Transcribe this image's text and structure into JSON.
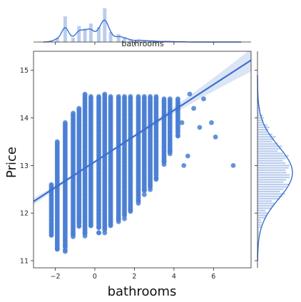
{
  "chart_data": {
    "type": "scatter",
    "subtype": "jointplot-regression",
    "xlabel": "bathrooms",
    "ylabel": "Price",
    "top_marginal_label": "bathrooms",
    "xlim": [
      -3.1,
      7.9
    ],
    "ylim": [
      10.85,
      15.4
    ],
    "xticks": [
      -2,
      0,
      2,
      4,
      6
    ],
    "yticks": [
      11,
      12,
      13,
      14,
      15
    ],
    "grid": false,
    "colors": {
      "points": "#4a7fd4",
      "line": "#3b6fcf",
      "hist": "#aec4ea",
      "axis": "#262626"
    },
    "regression": {
      "slope": 0.27,
      "intercept": 13.08,
      "x_range": [
        -3.1,
        7.9
      ]
    },
    "columns": [
      {
        "x": -2.2,
        "ymin": 11.6,
        "ymax": 12.6
      },
      {
        "x": -1.9,
        "ymin": 11.3,
        "ymax": 13.5
      },
      {
        "x": -1.5,
        "ymin": 11.3,
        "ymax": 13.9
      },
      {
        "x": -1.1,
        "ymin": 11.6,
        "ymax": 14.1
      },
      {
        "x": -0.8,
        "ymin": 11.8,
        "ymax": 14.2
      },
      {
        "x": -0.5,
        "ymin": 11.6,
        "ymax": 14.5
      },
      {
        "x": -0.2,
        "ymin": 11.8,
        "ymax": 14.45
      },
      {
        "x": 0.2,
        "ymin": 11.7,
        "ymax": 14.45
      },
      {
        "x": 0.5,
        "ymin": 11.7,
        "ymax": 14.5
      },
      {
        "x": 0.8,
        "ymin": 11.8,
        "ymax": 14.45
      },
      {
        "x": 1.2,
        "ymin": 11.9,
        "ymax": 14.45
      },
      {
        "x": 1.5,
        "ymin": 12.0,
        "ymax": 14.45
      },
      {
        "x": 1.8,
        "ymin": 12.1,
        "ymax": 14.45
      },
      {
        "x": 2.2,
        "ymin": 12.3,
        "ymax": 14.45
      },
      {
        "x": 2.5,
        "ymin": 12.5,
        "ymax": 14.45
      },
      {
        "x": 2.8,
        "ymin": 12.6,
        "ymax": 14.45
      },
      {
        "x": 3.1,
        "ymin": 12.8,
        "ymax": 14.45
      },
      {
        "x": 3.5,
        "ymin": 13.1,
        "ymax": 14.4
      },
      {
        "x": 3.8,
        "ymin": 13.3,
        "ymax": 14.4
      },
      {
        "x": 4.2,
        "ymin": 13.7,
        "ymax": 14.4
      }
    ],
    "extra_points": [
      {
        "x": 4.8,
        "y": 14.5
      },
      {
        "x": 5.0,
        "y": 14.2
      },
      {
        "x": 5.3,
        "y": 13.8
      },
      {
        "x": 5.5,
        "y": 14.4
      },
      {
        "x": 5.9,
        "y": 13.9
      },
      {
        "x": 6.1,
        "y": 13.6
      },
      {
        "x": 4.7,
        "y": 13.2
      },
      {
        "x": 4.5,
        "y": 13.0
      },
      {
        "x": 7.0,
        "y": 13.0
      },
      {
        "x": 4.4,
        "y": 13.9
      },
      {
        "x": 4.2,
        "y": 14.2
      }
    ],
    "top_histogram": {
      "bins": [
        -2.2,
        -1.9,
        -1.5,
        -1.1,
        -0.8,
        -0.5,
        -0.2,
        0.2,
        0.5,
        0.8,
        1.2,
        1.5,
        1.8,
        2.2,
        2.5,
        2.8,
        3.1,
        3.5,
        3.8,
        4.2,
        4.5
      ],
      "heights": [
        0.02,
        0.12,
        0.72,
        0.12,
        0.45,
        0.38,
        0.52,
        0.42,
        0.95,
        0.28,
        0.22,
        0.14,
        0.08,
        0.07,
        0.05,
        0.04,
        0.03,
        0.02,
        0.02,
        0.01,
        0.01
      ]
    },
    "right_histogram": {
      "bins": [
        11.3,
        11.5,
        11.7,
        11.9,
        12.1,
        12.3,
        12.5,
        12.7,
        12.9,
        13.1,
        13.3,
        13.5,
        13.7,
        13.9,
        14.1,
        14.3
      ],
      "heights": [
        0.02,
        0.05,
        0.12,
        0.28,
        0.5,
        0.78,
        0.9,
        1.0,
        0.97,
        0.88,
        0.7,
        0.52,
        0.34,
        0.18,
        0.08,
        0.03
      ]
    }
  }
}
